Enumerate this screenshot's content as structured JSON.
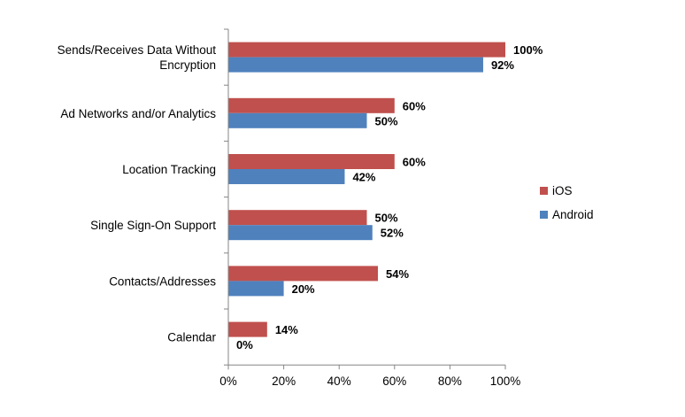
{
  "chart_data": {
    "type": "bar",
    "orientation": "horizontal",
    "title": "",
    "xlabel": "",
    "ylabel": "",
    "xlim": [
      0,
      100
    ],
    "grid": false,
    "legend_position": "right",
    "categories": [
      "Sends/Receives Data Without Encryption",
      "Ad Networks and/or Analytics",
      "Location Tracking",
      "Single Sign-On Support",
      "Contacts/Addresses",
      "Calendar"
    ],
    "category_lines": [
      [
        "Sends/Receives Data Without",
        "Encryption"
      ],
      [
        "Ad Networks and/or Analytics"
      ],
      [
        "Location Tracking"
      ],
      [
        "Single Sign-On Support"
      ],
      [
        "Contacts/Addresses"
      ],
      [
        "Calendar"
      ]
    ],
    "x_ticks": [
      0,
      20,
      40,
      60,
      80,
      100
    ],
    "x_tick_labels": [
      "0%",
      "20%",
      "40%",
      "60%",
      "80%",
      "100%"
    ],
    "series": [
      {
        "name": "iOS",
        "color": "#c0504d",
        "values": [
          100,
          60,
          60,
          50,
          54,
          14
        ],
        "labels": [
          "100%",
          "60%",
          "60%",
          "50%",
          "54%",
          "14%"
        ]
      },
      {
        "name": "Android",
        "color": "#4f81bd",
        "values": [
          92,
          50,
          42,
          52,
          20,
          0
        ],
        "labels": [
          "92%",
          "50%",
          "42%",
          "52%",
          "20%",
          "0%"
        ]
      }
    ]
  }
}
